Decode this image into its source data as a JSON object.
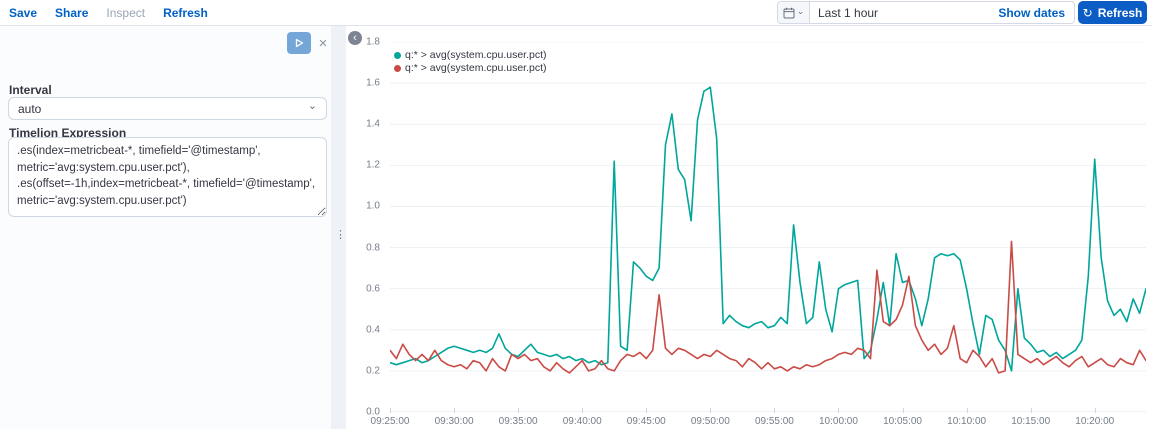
{
  "toolbar": {
    "save": "Save",
    "share": "Share",
    "inspect": "Inspect",
    "refresh": "Refresh"
  },
  "timepicker": {
    "range_label": "Last 1 hour",
    "show_dates_label": "Show dates",
    "refresh_button_label": "Refresh"
  },
  "editor": {
    "interval_label": "Interval",
    "interval_value": "auto",
    "expression_label": "Timelion Expression",
    "expression": ".es(index=metricbeat-*, timefield='@timestamp',\nmetric='avg:system.cpu.user.pct'),\n.es(offset=-1h,index=metricbeat-*, timefield='@timestamp',\nmetric='avg:system.cpu.user.pct')"
  },
  "icons": {
    "play": "▷",
    "close": "×",
    "refresh": "↻",
    "collapse_left": "‹",
    "resizer_dots": "⋮",
    "chevron_down": "⌄",
    "calendar": "calendar-glyph"
  },
  "colors": {
    "link_blue": "#0061c5",
    "button_blue": "#0b5cc5",
    "play_button_blue": "#74a7d8",
    "series_teal": "#00a69b",
    "series_red": "#ca4b45",
    "gridline": "#edf0f5",
    "axis_text": "#767d89"
  },
  "chart_data": {
    "type": "line",
    "title": "",
    "xlabel": "",
    "ylabel": "",
    "x_start": "09:25:00",
    "interval_seconds": 30,
    "ylim": [
      0,
      1.8
    ],
    "y_ticks": [
      "0.0",
      "0.2",
      "0.4",
      "0.6",
      "0.8",
      "1.0",
      "1.2",
      "1.4",
      "1.6",
      "1.8"
    ],
    "x_tick_labels": [
      "09:25:00",
      "09:30:00",
      "09:35:00",
      "09:40:00",
      "09:45:00",
      "09:50:00",
      "09:55:00",
      "10:00:00",
      "10:05:00",
      "10:10:00",
      "10:15:00",
      "10:20:00"
    ],
    "grid": "horizontal",
    "legend_position": "top-left",
    "series": [
      {
        "name": "q:* > avg(system.cpu.user.pct)",
        "color": "#00a69b",
        "values": [
          0.24,
          0.23,
          0.24,
          0.25,
          0.26,
          0.24,
          0.25,
          0.27,
          0.29,
          0.31,
          0.32,
          0.31,
          0.3,
          0.29,
          0.3,
          0.29,
          0.31,
          0.38,
          0.31,
          0.28,
          0.27,
          0.3,
          0.33,
          0.29,
          0.28,
          0.27,
          0.28,
          0.26,
          0.27,
          0.25,
          0.26,
          0.24,
          0.25,
          0.23,
          0.24,
          1.22,
          0.32,
          0.3,
          0.73,
          0.7,
          0.66,
          0.64,
          0.7,
          1.3,
          1.45,
          1.18,
          1.13,
          0.93,
          1.42,
          1.56,
          1.58,
          1.33,
          0.43,
          0.47,
          0.44,
          0.42,
          0.41,
          0.43,
          0.44,
          0.41,
          0.42,
          0.46,
          0.43,
          0.91,
          0.63,
          0.43,
          0.46,
          0.73,
          0.5,
          0.39,
          0.6,
          0.62,
          0.63,
          0.64,
          0.26,
          0.3,
          0.45,
          0.63,
          0.42,
          0.77,
          0.63,
          0.64,
          0.55,
          0.42,
          0.55,
          0.75,
          0.77,
          0.76,
          0.77,
          0.74,
          0.6,
          0.43,
          0.28,
          0.47,
          0.45,
          0.35,
          0.3,
          0.2,
          0.6,
          0.36,
          0.33,
          0.29,
          0.3,
          0.27,
          0.29,
          0.26,
          0.28,
          0.3,
          0.35,
          0.66,
          1.23,
          0.75,
          0.54,
          0.47,
          0.5,
          0.44,
          0.55,
          0.48,
          0.6
        ]
      },
      {
        "name": "q:* > avg(system.cpu.user.pct)",
        "color": "#ca4b45",
        "values": [
          0.3,
          0.26,
          0.33,
          0.28,
          0.25,
          0.28,
          0.25,
          0.3,
          0.25,
          0.23,
          0.22,
          0.23,
          0.21,
          0.25,
          0.24,
          0.2,
          0.26,
          0.22,
          0.2,
          0.28,
          0.26,
          0.28,
          0.25,
          0.26,
          0.22,
          0.2,
          0.24,
          0.21,
          0.19,
          0.22,
          0.25,
          0.2,
          0.21,
          0.25,
          0.21,
          0.2,
          0.25,
          0.28,
          0.27,
          0.29,
          0.26,
          0.3,
          0.57,
          0.31,
          0.28,
          0.31,
          0.3,
          0.28,
          0.26,
          0.28,
          0.27,
          0.3,
          0.28,
          0.26,
          0.25,
          0.22,
          0.26,
          0.24,
          0.21,
          0.24,
          0.21,
          0.22,
          0.2,
          0.22,
          0.21,
          0.23,
          0.22,
          0.23,
          0.25,
          0.26,
          0.28,
          0.29,
          0.28,
          0.31,
          0.3,
          0.26,
          0.69,
          0.44,
          0.42,
          0.45,
          0.52,
          0.66,
          0.42,
          0.35,
          0.3,
          0.33,
          0.28,
          0.31,
          0.42,
          0.26,
          0.24,
          0.3,
          0.27,
          0.22,
          0.26,
          0.19,
          0.2,
          0.83,
          0.28,
          0.26,
          0.24,
          0.26,
          0.23,
          0.25,
          0.27,
          0.24,
          0.22,
          0.25,
          0.27,
          0.22,
          0.24,
          0.26,
          0.23,
          0.22,
          0.26,
          0.24,
          0.23,
          0.3,
          0.25
        ]
      }
    ]
  }
}
